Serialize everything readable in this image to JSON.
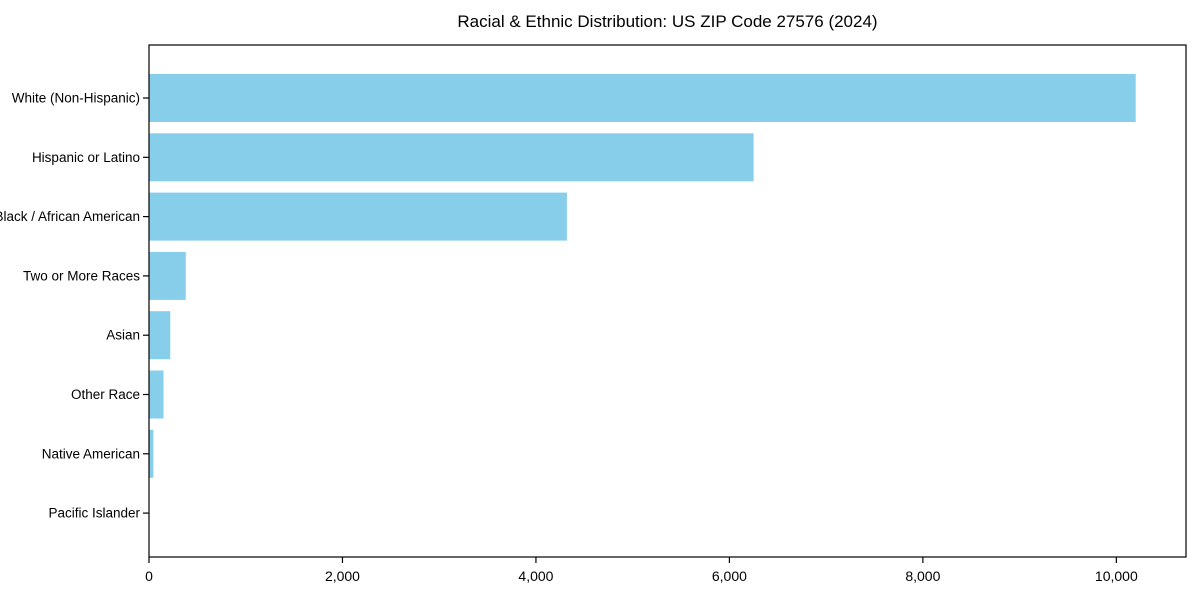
{
  "chart_data": {
    "type": "bar",
    "orientation": "horizontal",
    "title": "Racial & Ethnic Distribution: US ZIP Code 27576 (2024)",
    "categories": [
      "White (Non-Hispanic)",
      "Hispanic or Latino",
      "Black / African American",
      "Two or More Races",
      "Asian",
      "Other Race",
      "Native American",
      "Pacific Islander"
    ],
    "values": [
      10200,
      6250,
      4320,
      380,
      220,
      150,
      45,
      5
    ],
    "xlabel": "",
    "ylabel": "",
    "xlim": [
      0,
      10720
    ],
    "xticks": [
      0,
      2000,
      4000,
      6000,
      8000,
      10000
    ],
    "xtick_labels": [
      "0",
      "2,000",
      "4,000",
      "6,000",
      "8,000",
      "10,000"
    ],
    "grid": false,
    "legend": null,
    "colors": {
      "bar": "#87CEEB",
      "axis": "#000000",
      "text": "#000000",
      "background": "#FFFFFF"
    }
  }
}
